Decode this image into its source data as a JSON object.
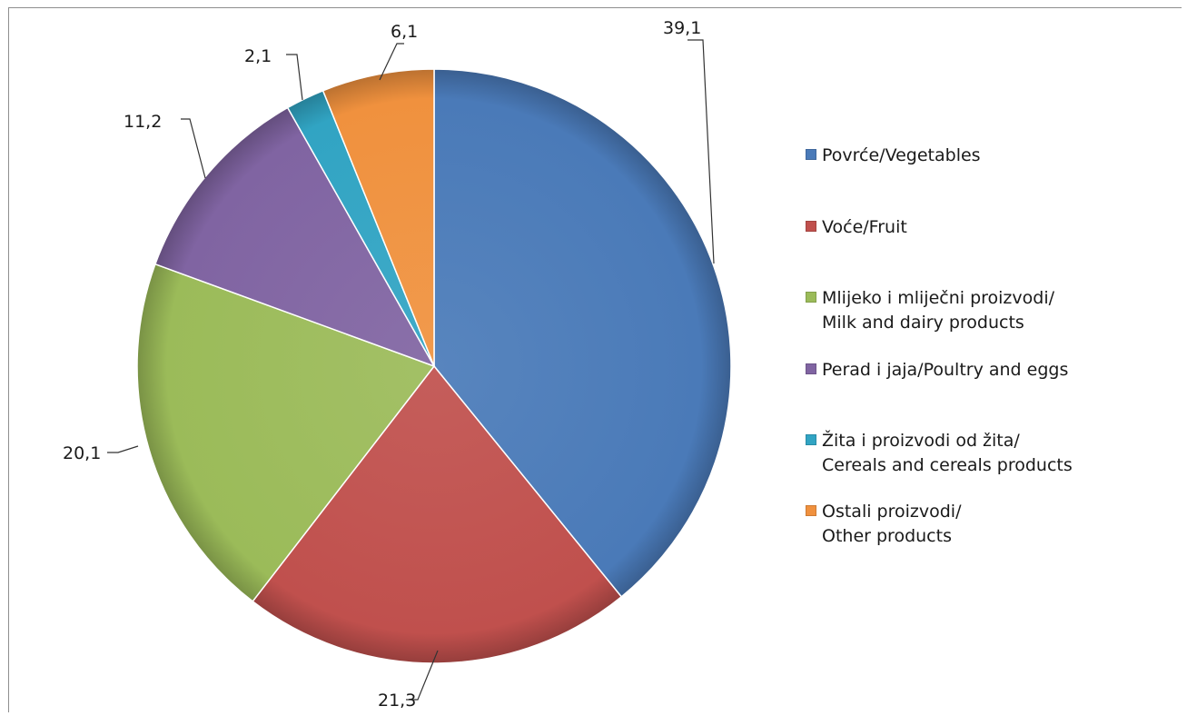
{
  "chart_data": {
    "type": "pie",
    "slices": [
      {
        "label": "Povrće/Vegetables",
        "value": 39.1,
        "display": "39,1",
        "color": "#4a7ab8"
      },
      {
        "label": "Voće/Fruit",
        "value": 21.3,
        "display": "21,3",
        "color": "#c0504d"
      },
      {
        "label": "Mlijeko i mliječni proizvodi/\nMilk and dairy products",
        "value": 20.1,
        "display": "20,1",
        "color": "#9bbb59"
      },
      {
        "label": "Perad i jaja/Poultry and eggs",
        "value": 11.2,
        "display": "11,2",
        "color": "#8064a2"
      },
      {
        "label": "Žita i proizvodi od žita/\nCereals and cereals products",
        "value": 2.1,
        "display": "2,1",
        "color": "#31a4c3"
      },
      {
        "label": "Ostali proizvodi/\nOther products",
        "value": 6.1,
        "display": "6,1",
        "color": "#f0913e"
      }
    ],
    "legend_position": "right"
  }
}
